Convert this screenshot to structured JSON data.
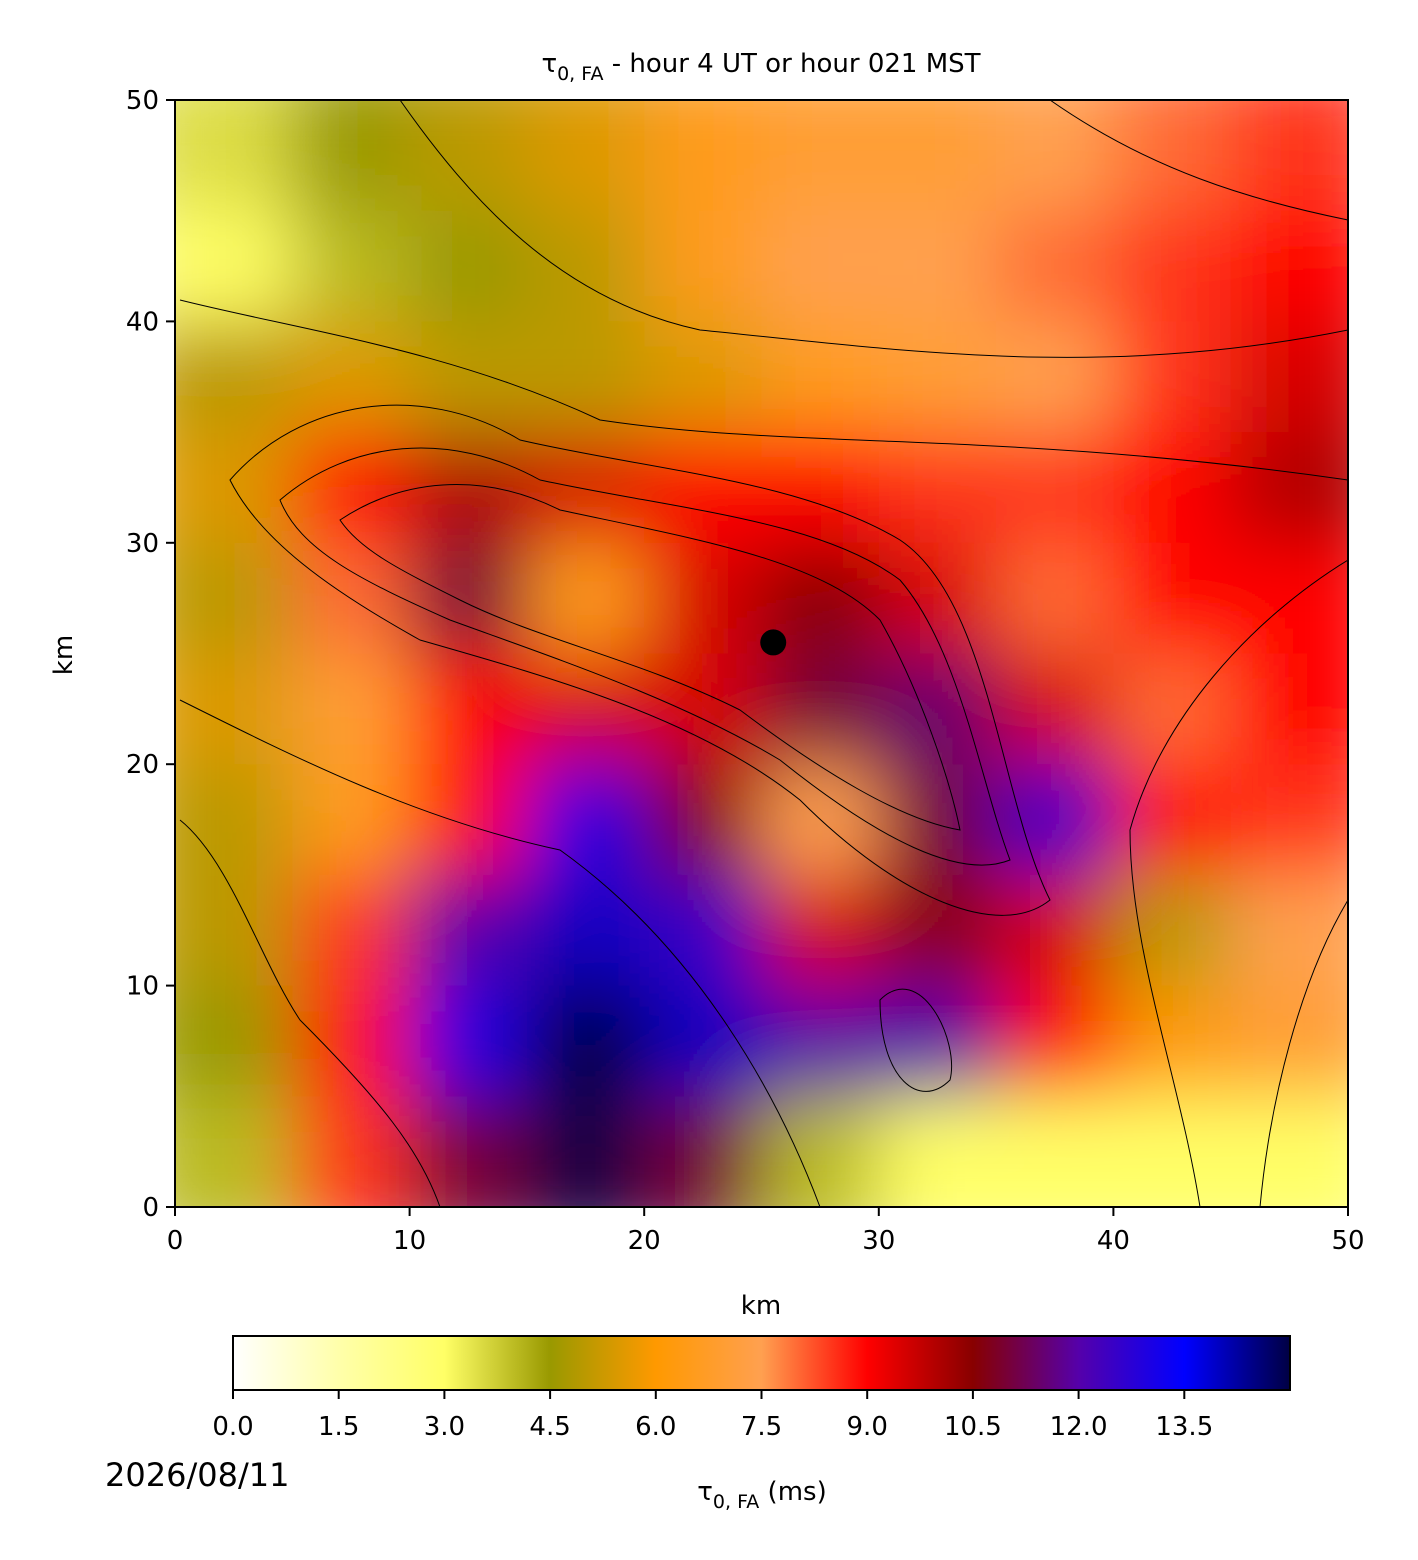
{
  "chart_data": {
    "type": "heatmap",
    "title_symbol": "τ",
    "title_subscript": "0, FA",
    "title_rest": " - hour 4 UT or hour 021 MST",
    "xlabel": "km",
    "ylabel": "km",
    "xlim": [
      0,
      50
    ],
    "ylim": [
      0,
      50
    ],
    "xticks": [
      0,
      10,
      20,
      30,
      40,
      50
    ],
    "yticks": [
      0,
      10,
      20,
      30,
      40,
      50
    ],
    "cell_size": 5,
    "z": [
      [
        3.5,
        4.5,
        5,
        5.5,
        6.5,
        7,
        7,
        7.5,
        8,
        8.5
      ],
      [
        3,
        4,
        4.5,
        5,
        6.5,
        7.5,
        7.5,
        8,
        8.5,
        9
      ],
      [
        5,
        5.5,
        5,
        5,
        5.5,
        6.5,
        7,
        7.5,
        8.5,
        9.5
      ],
      [
        5.5,
        9,
        10,
        9.5,
        9,
        9,
        8.5,
        8.5,
        9,
        10
      ],
      [
        5,
        8,
        11,
        6.5,
        9.5,
        10.5,
        9.5,
        8,
        9,
        9
      ],
      [
        5.5,
        7,
        9,
        9.5,
        9.5,
        11,
        11.5,
        9.5,
        8,
        9
      ],
      [
        5,
        6.5,
        9,
        13,
        10.5,
        7.5,
        11,
        12.5,
        9,
        8.5
      ],
      [
        5,
        8.5,
        12,
        14,
        12.5,
        9.5,
        10.5,
        9.5,
        5,
        7.5
      ],
      [
        4.5,
        9,
        13,
        15,
        14,
        12,
        12,
        9,
        6,
        7
      ],
      [
        4,
        8.5,
        11,
        15,
        11,
        4,
        3,
        3,
        3,
        3
      ]
    ],
    "colormap": [
      "#ffffff",
      "#ffffaa",
      "#ffff66",
      "#999900",
      "#ff9900",
      "#ffa050",
      "#ff0000",
      "#880000",
      "#5500aa",
      "#0000ff",
      "#000044"
    ],
    "point": {
      "x": 25.5,
      "y": 25.5
    },
    "clim": [
      0,
      15
    ],
    "cticks": [
      {
        "value": 0,
        "label": "0.0"
      },
      {
        "value": 1.5,
        "label": "1.5"
      },
      {
        "value": 3,
        "label": "3.0"
      },
      {
        "value": 4.5,
        "label": "4.5"
      },
      {
        "value": 6,
        "label": "6.0"
      },
      {
        "value": 7.5,
        "label": "7.5"
      },
      {
        "value": 9,
        "label": "9.0"
      },
      {
        "value": 10.5,
        "label": "10.5"
      },
      {
        "value": 12,
        "label": "12.0"
      },
      {
        "value": 13.5,
        "label": "13.5"
      }
    ],
    "cbar_symbol": "τ",
    "cbar_subscript": "0, FA",
    "cbar_rest": " (ms)",
    "date": "2026/08/11"
  }
}
